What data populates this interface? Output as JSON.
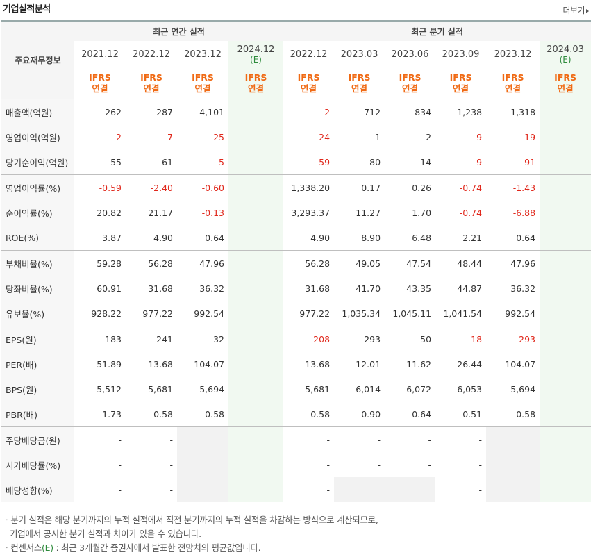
{
  "title": "기업실적분석",
  "more_label": "더보기",
  "header": {
    "row_label": "주요재무정보",
    "annual_group": "최근 연간 실적",
    "quarter_group": "최근 분기 실적",
    "annual_periods": [
      "2021.12",
      "2022.12",
      "2023.12",
      "2024.12"
    ],
    "quarter_periods": [
      "2022.12",
      "2023.03",
      "2023.06",
      "2023.09",
      "2023.12",
      "2024.03"
    ],
    "estimate_mark": "(E)",
    "ifrs": "IFRS",
    "consolidated": "연결"
  },
  "rows": [
    {
      "label": "매출액(억원)",
      "annual": [
        "262",
        "287",
        "4,101",
        ""
      ],
      "quarter": [
        "-2",
        "712",
        "834",
        "1,238",
        "1,318",
        ""
      ]
    },
    {
      "label": "영업이익(억원)",
      "annual": [
        "-2",
        "-7",
        "-25",
        ""
      ],
      "quarter": [
        "-24",
        "1",
        "2",
        "-9",
        "-19",
        ""
      ]
    },
    {
      "label": "당기순이익(억원)",
      "annual": [
        "55",
        "61",
        "-5",
        ""
      ],
      "quarter": [
        "-59",
        "80",
        "14",
        "-9",
        "-91",
        ""
      ]
    },
    {
      "label": "영업이익률(%)",
      "annual": [
        "-0.59",
        "-2.40",
        "-0.60",
        ""
      ],
      "quarter": [
        "1,338.20",
        "0.17",
        "0.26",
        "-0.74",
        "-1.43",
        ""
      ]
    },
    {
      "label": "순이익률(%)",
      "annual": [
        "20.82",
        "21.17",
        "-0.13",
        ""
      ],
      "quarter": [
        "3,293.37",
        "11.27",
        "1.70",
        "-0.74",
        "-6.88",
        ""
      ]
    },
    {
      "label": "ROE(%)",
      "annual": [
        "3.87",
        "4.90",
        "0.64",
        ""
      ],
      "quarter": [
        "4.90",
        "8.90",
        "6.48",
        "2.21",
        "0.64",
        ""
      ]
    },
    {
      "label": "부채비율(%)",
      "annual": [
        "59.28",
        "56.28",
        "47.96",
        ""
      ],
      "quarter": [
        "56.28",
        "49.05",
        "47.54",
        "48.44",
        "47.96",
        ""
      ]
    },
    {
      "label": "당좌비율(%)",
      "annual": [
        "60.91",
        "31.68",
        "36.32",
        ""
      ],
      "quarter": [
        "31.68",
        "41.70",
        "43.35",
        "44.87",
        "36.32",
        ""
      ]
    },
    {
      "label": "유보율(%)",
      "annual": [
        "928.22",
        "977.22",
        "992.54",
        ""
      ],
      "quarter": [
        "977.22",
        "1,035.34",
        "1,045.11",
        "1,041.54",
        "992.54",
        ""
      ]
    },
    {
      "label": "EPS(원)",
      "annual": [
        "183",
        "241",
        "32",
        ""
      ],
      "quarter": [
        "-208",
        "293",
        "50",
        "-18",
        "-293",
        ""
      ]
    },
    {
      "label": "PER(배)",
      "annual": [
        "51.89",
        "13.68",
        "104.07",
        ""
      ],
      "quarter": [
        "13.68",
        "12.01",
        "11.62",
        "26.44",
        "104.07",
        ""
      ]
    },
    {
      "label": "BPS(원)",
      "annual": [
        "5,512",
        "5,681",
        "5,694",
        ""
      ],
      "quarter": [
        "5,681",
        "6,014",
        "6,072",
        "6,053",
        "5,694",
        ""
      ]
    },
    {
      "label": "PBR(배)",
      "annual": [
        "1.73",
        "0.58",
        "0.58",
        ""
      ],
      "quarter": [
        "0.58",
        "0.90",
        "0.64",
        "0.51",
        "0.58",
        ""
      ]
    },
    {
      "label": "주당배당금(원)",
      "annual": [
        "-",
        "-",
        "",
        ""
      ],
      "quarter": [
        "-",
        "-",
        "-",
        "-",
        "",
        ""
      ]
    },
    {
      "label": "시가배당률(%)",
      "annual": [
        "-",
        "-",
        "",
        ""
      ],
      "quarter": [
        "-",
        "-",
        "-",
        "-",
        "",
        ""
      ]
    },
    {
      "label": "배당성향(%)",
      "annual": [
        "-",
        "-",
        "",
        ""
      ],
      "quarter": [
        "-",
        "",
        "",
        "-",
        "",
        ""
      ]
    }
  ],
  "notes": {
    "line1": "분기 실적은 해당 분기까지의 누적 실적에서 직전 분기까지의 누적 실적을 차감하는 방식으로 계산되므로,",
    "line2": "기업에서 공시한 분기 실적과 차이가 있을 수 있습니다.",
    "line3_prefix": "컨센서스",
    "line3_mark": "(E)",
    "line3_suffix": " : 최근 3개월간 증권사에서 발표한 전망치의 평균값입니다."
  },
  "colors": {
    "negative": "#e0281c",
    "ifrs": "#f06a14",
    "estimate": "#2e8b3c"
  }
}
